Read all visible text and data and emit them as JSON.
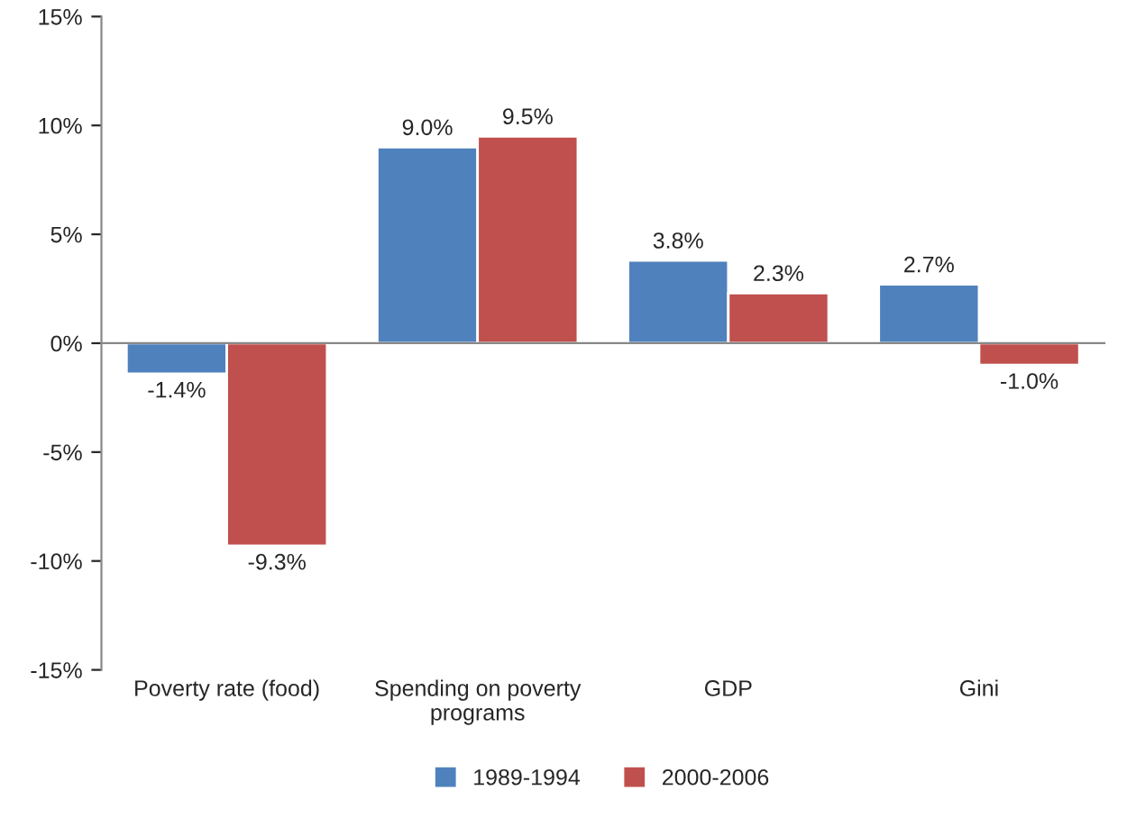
{
  "chart_data": {
    "type": "bar",
    "categories": [
      "Poverty rate (food)",
      "Spending on poverty\nprograms",
      "GDP",
      "Gini"
    ],
    "series": [
      {
        "name": "1989-1994",
        "color": "#4f81bd",
        "values": [
          -1.4,
          9.0,
          3.8,
          2.7
        ],
        "value_labels": [
          "-1.4%",
          "9.0%",
          "3.8%",
          "2.7%"
        ]
      },
      {
        "name": "2000-2006",
        "color": "#c0504d",
        "values": [
          -9.3,
          9.5,
          2.3,
          -1.0
        ],
        "value_labels": [
          "-9.3%",
          "9.5%",
          "2.3%",
          "-1.0%"
        ]
      }
    ],
    "ylim": [
      -15,
      15
    ],
    "yticks": [
      {
        "value": -15,
        "label": "-15%"
      },
      {
        "value": -10,
        "label": "-10%"
      },
      {
        "value": -5,
        "label": "-5%"
      },
      {
        "value": 0,
        "label": "0%"
      },
      {
        "value": 5,
        "label": "5%"
      },
      {
        "value": 10,
        "label": "10%"
      },
      {
        "value": 15,
        "label": "15%"
      }
    ],
    "legend": "bottom"
  }
}
